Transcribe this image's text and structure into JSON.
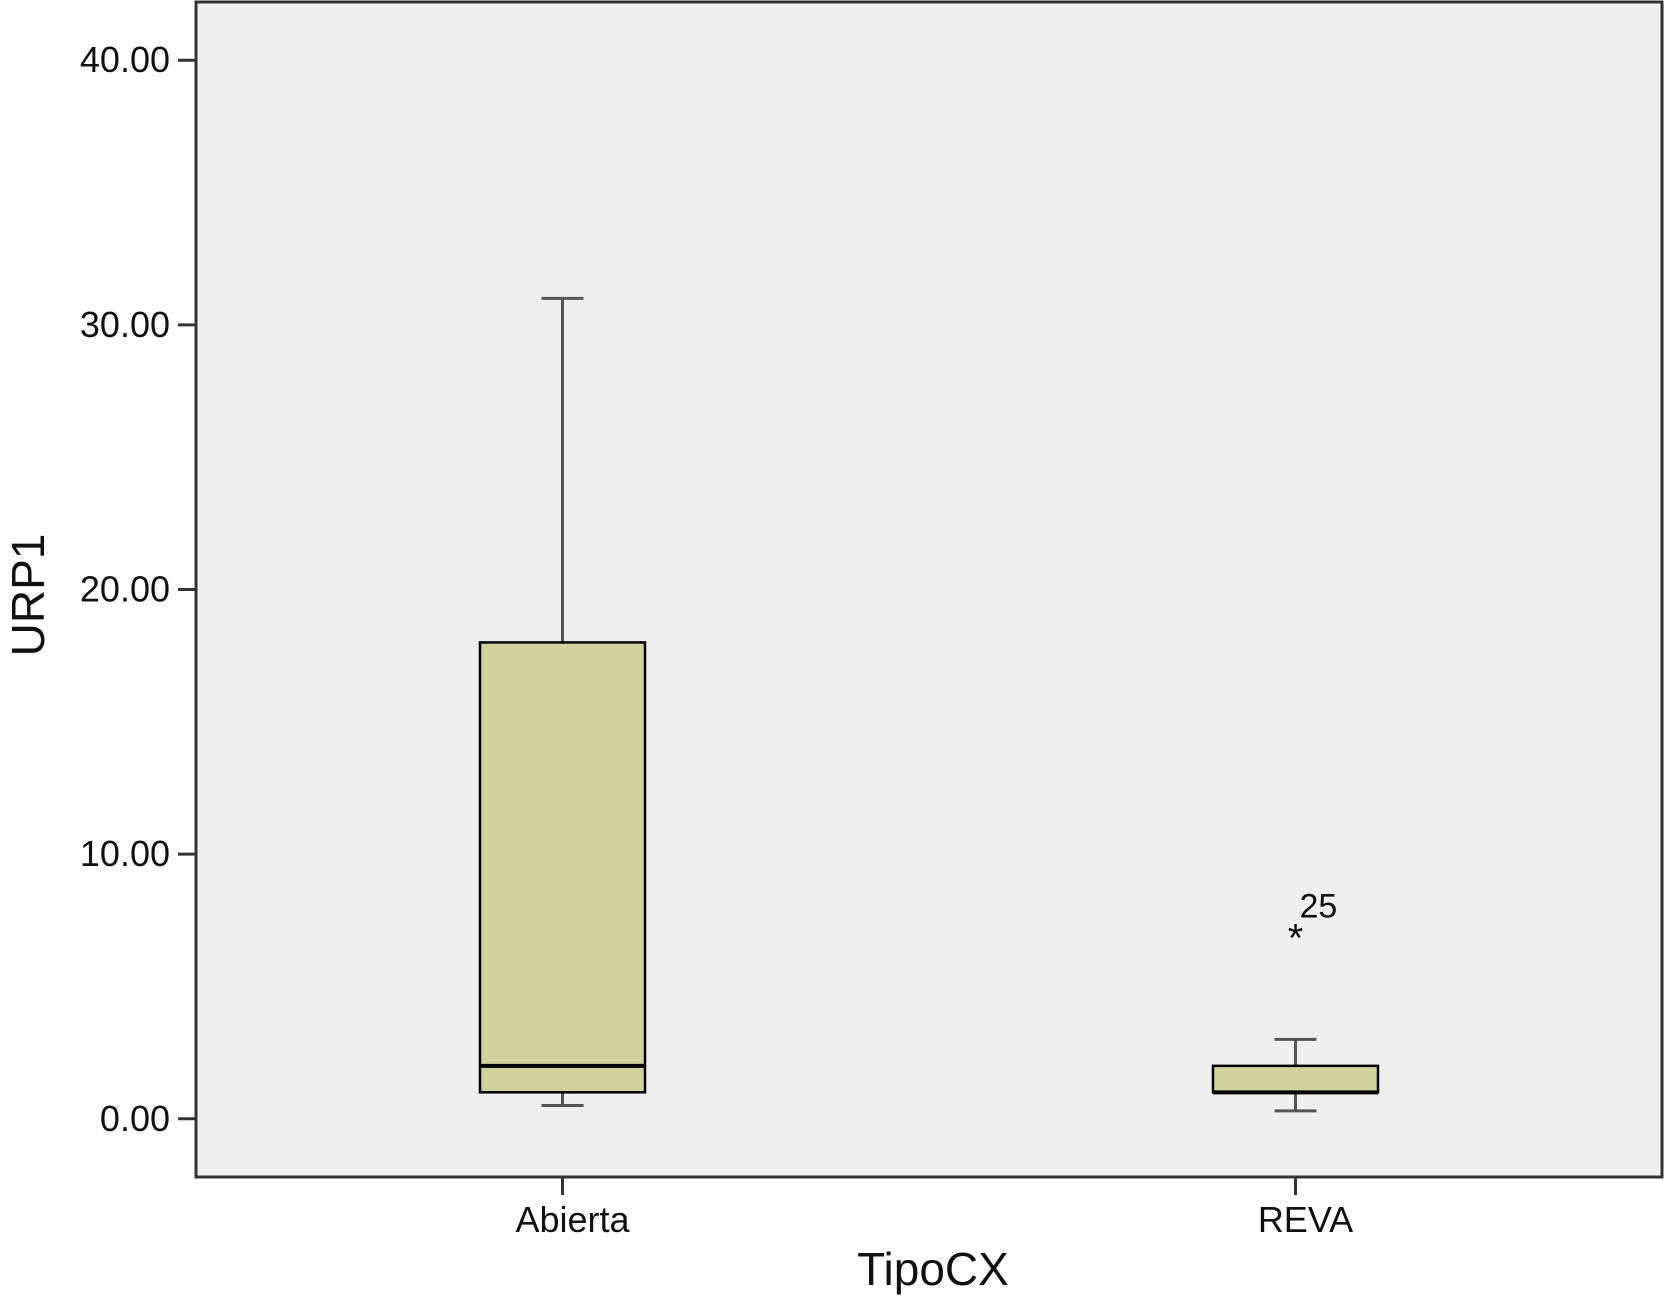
{
  "chart_data": {
    "type": "boxplot",
    "xlabel": "TipoCX",
    "ylabel": "URP1",
    "ylim": [
      -2.2,
      42.2
    ],
    "yticks": [
      0,
      10,
      20,
      30,
      40
    ],
    "ytick_labels": [
      "0.00",
      "10.00",
      "20.00",
      "30.00",
      "40.00"
    ],
    "categories": [
      "Abierta",
      "REVA"
    ],
    "boxes": [
      {
        "category": "Abierta",
        "whisker_low": 0.5,
        "q1": 1.0,
        "median": 2.0,
        "q3": 18.0,
        "whisker_high": 31.0,
        "outliers": []
      },
      {
        "category": "REVA",
        "whisker_low": 0.3,
        "q1": 1.0,
        "median": 1.0,
        "q3": 2.0,
        "whisker_high": 3.0,
        "outliers": [
          {
            "value": 7.0,
            "marker": "*",
            "label": "25"
          }
        ]
      }
    ],
    "grid": false,
    "legend": "none",
    "colors": {
      "box_fill": "#d0d19c",
      "plot_background": "#efefef",
      "line": "#000000",
      "whisker": "#555555"
    }
  }
}
